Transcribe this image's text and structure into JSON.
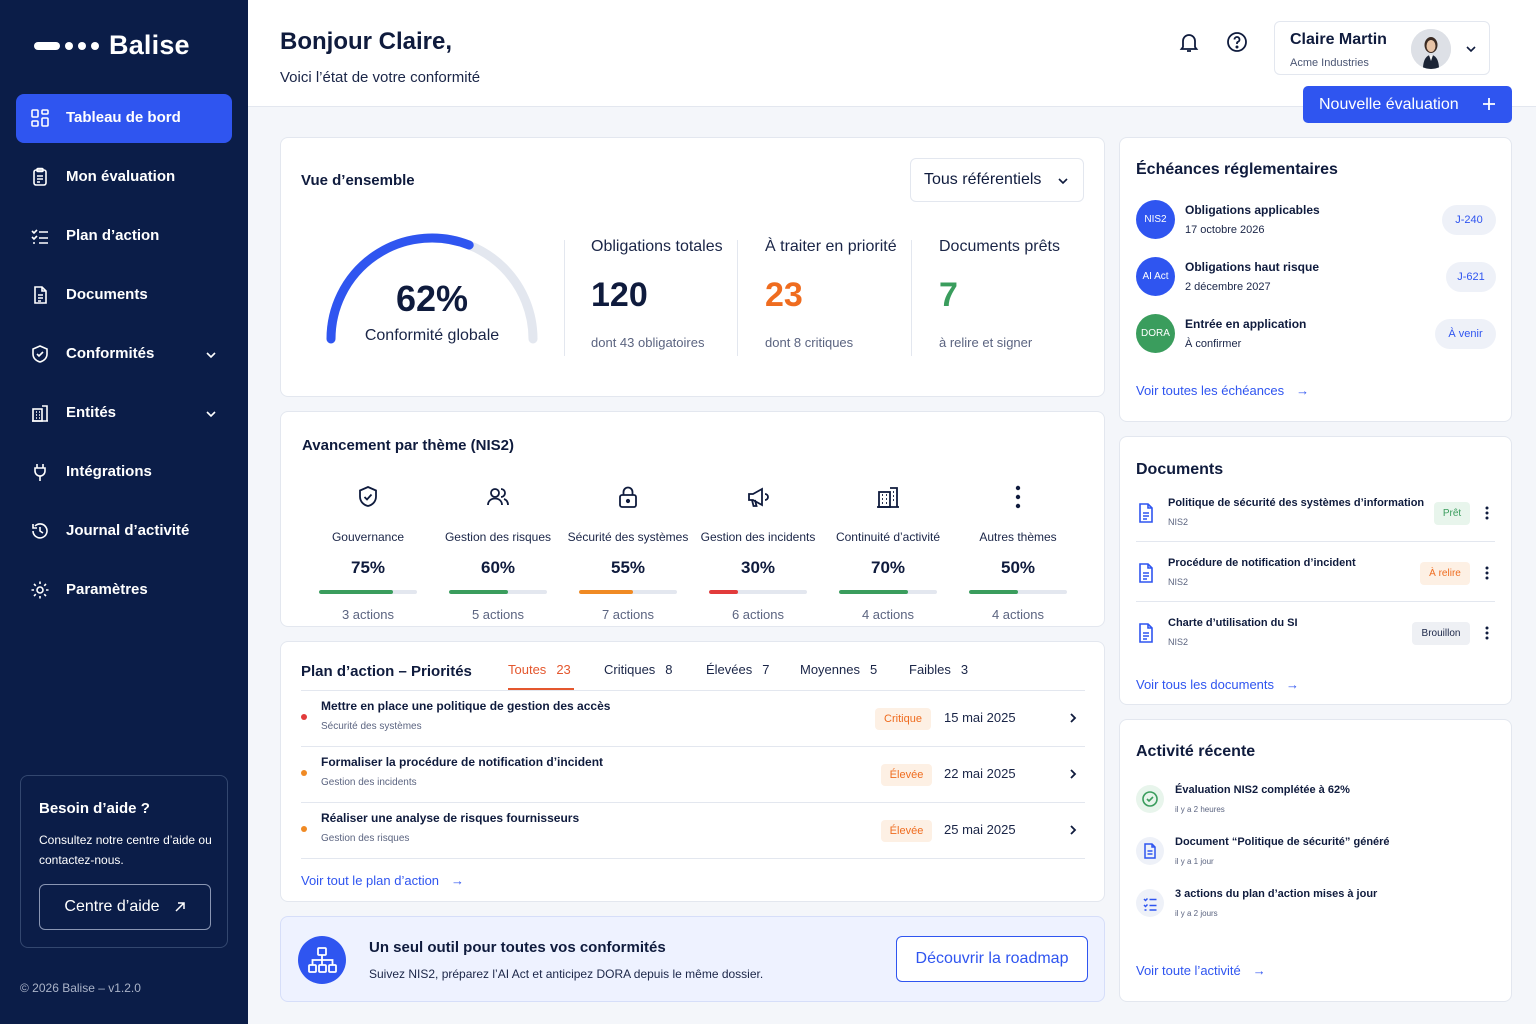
{
  "brand": {
    "name": "Balise"
  },
  "sidebar": {
    "items": [
      {
        "label": "Tableau de bord",
        "icon": "grid-icon",
        "active": true
      },
      {
        "label": "Mon évaluation",
        "icon": "clipboard-icon"
      },
      {
        "label": "Plan d’action",
        "icon": "checklist-icon"
      },
      {
        "label": "Documents",
        "icon": "document-icon"
      },
      {
        "label": "Conformités",
        "icon": "shield-check-icon",
        "expandable": true
      },
      {
        "label": "Entités",
        "icon": "building-icon",
        "expandable": true
      },
      {
        "label": "Intégrations",
        "icon": "plug-icon"
      },
      {
        "label": "Journal d’activité",
        "icon": "history-icon"
      },
      {
        "label": "Paramètres",
        "icon": "gear-icon"
      }
    ],
    "help": {
      "title": "Besoin d’aide ?",
      "text": "Consultez notre centre d’aide ou contactez-nous.",
      "button": "Centre d’aide"
    },
    "footer": "© 2026 Balise – v1.2.0"
  },
  "header": {
    "greeting": "Bonjour Claire,",
    "subtitle": "Voici l’état de votre conformité",
    "user": {
      "name": "Claire Martin",
      "company": "Acme Industries"
    },
    "new_button": "Nouvelle évaluation"
  },
  "overview": {
    "title": "Vue d’ensemble",
    "filter": "Tous référentiels",
    "gauge": {
      "value": 62,
      "display": "62%",
      "label": "Conformité globale"
    },
    "stats": [
      {
        "label": "Obligations totales",
        "value": "120",
        "sub": "dont 43 obligatoires",
        "color": "#0f1b3d"
      },
      {
        "label": "À traiter en priorité",
        "value": "23",
        "sub": "dont 8 critiques",
        "color": "#ef6c1f"
      },
      {
        "label": "Documents prêts",
        "value": "7",
        "sub": "à relire et signer",
        "color": "#3a9d5d"
      }
    ]
  },
  "themes": {
    "title": "Avancement par thème (NIS2)",
    "items": [
      {
        "name": "Gouvernance",
        "icon": "shield-check-icon",
        "percent": "75%",
        "progress": 0.75,
        "color": "#3a9d5d",
        "actions": "3 actions"
      },
      {
        "name": "Gestion des risques",
        "icon": "users-icon",
        "percent": "60%",
        "progress": 0.6,
        "color": "#3a9d5d",
        "actions": "5 actions"
      },
      {
        "name": "Sécurité des systèmes",
        "icon": "lock-icon",
        "percent": "55%",
        "progress": 0.55,
        "color": "#f08a24",
        "actions": "7 actions"
      },
      {
        "name": "Gestion des incidents",
        "icon": "megaphone-icon",
        "percent": "30%",
        "progress": 0.3,
        "color": "#e23b3b",
        "actions": "6 actions"
      },
      {
        "name": "Continuité d’activité",
        "icon": "building-icon",
        "percent": "70%",
        "progress": 0.7,
        "color": "#3a9d5d",
        "actions": "4 actions"
      },
      {
        "name": "Autres thèmes",
        "icon": "more-vertical-icon",
        "percent": "50%",
        "progress": 0.5,
        "color": "#3a9d5d",
        "actions": "4 actions"
      }
    ]
  },
  "plan": {
    "title": "Plan d’action – Priorités",
    "tabs": [
      {
        "label": "Toutes",
        "count": "23",
        "active": true
      },
      {
        "label": "Critiques",
        "count": "8"
      },
      {
        "label": "Élevées",
        "count": "7"
      },
      {
        "label": "Moyennes",
        "count": "5"
      },
      {
        "label": "Faibles",
        "count": "3"
      }
    ],
    "rows": [
      {
        "title": "Mettre en place une politique de gestion des accès",
        "theme": "Sécurité des systèmes",
        "priority": "Critique",
        "date": "15 mai 2025",
        "dot": "#e23b3b"
      },
      {
        "title": "Formaliser la procédure de notification d’incident",
        "theme": "Gestion des incidents",
        "priority": "Élevée",
        "date": "22 mai 2025",
        "dot": "#f08a24"
      },
      {
        "title": "Réaliser une analyse de risques fournisseurs",
        "theme": "Gestion des risques",
        "priority": "Élevée",
        "date": "25 mai 2025",
        "dot": "#f08a24"
      }
    ],
    "link": "Voir tout le plan d’action"
  },
  "promo": {
    "title": "Un seul outil pour toutes vos conformités",
    "text": "Suivez NIS2, préparez l’AI Act et anticipez DORA depuis le même dossier.",
    "button": "Découvrir la roadmap"
  },
  "deadlines": {
    "title": "Échéances réglementaires",
    "items": [
      {
        "tag": "NIS2",
        "color": "#2f55f0",
        "title": "Obligations applicables",
        "date": "17 octobre 2026",
        "pill": "J-240"
      },
      {
        "tag": "AI Act",
        "color": "#2f55f0",
        "title": "Obligations haut risque",
        "date": "2 décembre 2027",
        "pill": "J-621"
      },
      {
        "tag": "DORA",
        "color": "#3a9d5d",
        "title": "Entrée en application",
        "date": "À confirmer",
        "pill": "À venir"
      }
    ],
    "link": "Voir toutes les échéances"
  },
  "documents": {
    "title": "Documents",
    "items": [
      {
        "name": "Politique de sécurité des systèmes d’information",
        "sub": "NIS2",
        "status": "Prêt",
        "status_bg": "#e8f5ec",
        "status_fg": "#3a9d5d"
      },
      {
        "name": "Procédure de notification d’incident",
        "sub": "NIS2",
        "status": "À relire",
        "status_bg": "#fdf0e4",
        "status_fg": "#ef6c1f"
      },
      {
        "name": "Charte d’utilisation du SI",
        "sub": "NIS2",
        "status": "Brouillon",
        "status_bg": "#eef0f4",
        "status_fg": "#1a2547"
      }
    ],
    "link": "Voir tous les documents"
  },
  "activity": {
    "title": "Activité récente",
    "items": [
      {
        "text": "Évaluation NIS2 complétée à 62%",
        "when": "il y a 2 heures",
        "icon": "check-circle-icon"
      },
      {
        "text": "Document “Politique de sécurité” généré",
        "when": "il y a 1 jour",
        "icon": "document-icon"
      },
      {
        "text": "3 actions du plan d’action mises à jour",
        "when": "il y a 2 jours",
        "icon": "checklist-icon"
      }
    ],
    "link": "Voir toute l’activité"
  },
  "colors": {
    "accent": "#2f55f0",
    "sidebar": "#0b1d48",
    "orange": "#ef6c1f",
    "green": "#3a9d5d",
    "red": "#e23b3b"
  }
}
